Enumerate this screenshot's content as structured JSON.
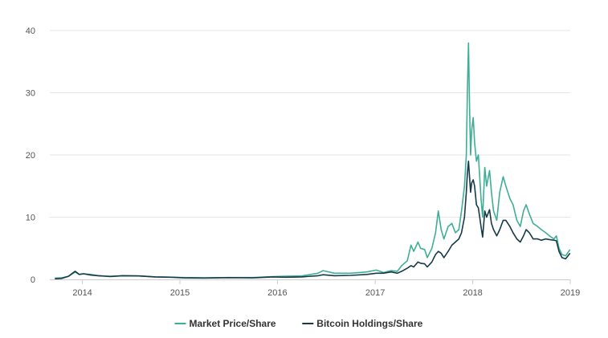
{
  "chart_data": {
    "type": "line",
    "title": "",
    "xlabel": "",
    "ylabel": "",
    "x_range": [
      "2013-09-01",
      "2019-01-01"
    ],
    "ylim": [
      0,
      40
    ],
    "x_ticks": [
      {
        "label": "2014",
        "date": "2014-01-01"
      },
      {
        "label": "2015",
        "date": "2015-01-01"
      },
      {
        "label": "2016",
        "date": "2016-01-01"
      },
      {
        "label": "2017",
        "date": "2017-01-01"
      },
      {
        "label": "2018",
        "date": "2018-01-01"
      },
      {
        "label": "2019",
        "date": "2019-01-01"
      }
    ],
    "y_ticks": [
      0,
      10,
      20,
      30,
      40
    ],
    "grid": "horizontal",
    "legend_position": "bottom-center",
    "series": [
      {
        "name": "Market Price/Share",
        "color": "#3fae96",
        "points": [
          [
            "2013-09-20",
            0.2
          ],
          [
            "2013-10-15",
            0.25
          ],
          [
            "2013-11-10",
            0.5
          ],
          [
            "2013-11-25",
            0.9
          ],
          [
            "2013-12-05",
            1.2
          ],
          [
            "2013-12-20",
            0.8
          ],
          [
            "2014-01-05",
            0.9
          ],
          [
            "2014-02-01",
            0.8
          ],
          [
            "2014-03-01",
            0.6
          ],
          [
            "2014-04-15",
            0.5
          ],
          [
            "2014-06-01",
            0.6
          ],
          [
            "2014-08-01",
            0.55
          ],
          [
            "2014-10-01",
            0.4
          ],
          [
            "2014-12-01",
            0.35
          ],
          [
            "2015-01-15",
            0.3
          ],
          [
            "2015-04-01",
            0.25
          ],
          [
            "2015-07-01",
            0.3
          ],
          [
            "2015-10-01",
            0.3
          ],
          [
            "2015-12-15",
            0.45
          ],
          [
            "2016-02-01",
            0.5
          ],
          [
            "2016-04-01",
            0.55
          ],
          [
            "2016-06-01",
            1.0
          ],
          [
            "2016-06-20",
            1.4
          ],
          [
            "2016-08-01",
            1.0
          ],
          [
            "2016-10-01",
            1.0
          ],
          [
            "2016-12-01",
            1.2
          ],
          [
            "2017-01-05",
            1.5
          ],
          [
            "2017-02-01",
            1.1
          ],
          [
            "2017-03-01",
            1.4
          ],
          [
            "2017-03-25",
            1.3
          ],
          [
            "2017-04-10",
            2.2
          ],
          [
            "2017-05-01",
            3.0
          ],
          [
            "2017-05-15",
            5.5
          ],
          [
            "2017-05-25",
            4.5
          ],
          [
            "2017-06-10",
            6.0
          ],
          [
            "2017-06-20",
            5.0
          ],
          [
            "2017-07-05",
            4.8
          ],
          [
            "2017-07-15",
            3.5
          ],
          [
            "2017-08-01",
            5.0
          ],
          [
            "2017-08-15",
            7.5
          ],
          [
            "2017-08-25",
            11.0
          ],
          [
            "2017-09-05",
            8.0
          ],
          [
            "2017-09-15",
            6.5
          ],
          [
            "2017-10-01",
            8.5
          ],
          [
            "2017-10-15",
            9.0
          ],
          [
            "2017-10-28",
            7.5
          ],
          [
            "2017-11-10",
            8.0
          ],
          [
            "2017-11-20",
            11.0
          ],
          [
            "2017-12-01",
            15.0
          ],
          [
            "2017-12-08",
            20.0
          ],
          [
            "2017-12-12",
            30.0
          ],
          [
            "2017-12-16",
            38.0
          ],
          [
            "2017-12-20",
            28.0
          ],
          [
            "2017-12-24",
            20.0
          ],
          [
            "2017-12-28",
            24.0
          ],
          [
            "2018-01-03",
            26.0
          ],
          [
            "2018-01-08",
            22.0
          ],
          [
            "2018-01-15",
            19.0
          ],
          [
            "2018-01-22",
            20.0
          ],
          [
            "2018-02-01",
            13.0
          ],
          [
            "2018-02-07",
            10.0
          ],
          [
            "2018-02-15",
            18.0
          ],
          [
            "2018-02-22",
            15.0
          ],
          [
            "2018-03-05",
            17.5
          ],
          [
            "2018-03-12",
            14.0
          ],
          [
            "2018-03-20",
            11.0
          ],
          [
            "2018-04-01",
            9.5
          ],
          [
            "2018-04-12",
            14.0
          ],
          [
            "2018-04-25",
            16.5
          ],
          [
            "2018-05-05",
            15.0
          ],
          [
            "2018-05-20",
            13.0
          ],
          [
            "2018-06-01",
            12.0
          ],
          [
            "2018-06-15",
            9.5
          ],
          [
            "2018-06-28",
            8.5
          ],
          [
            "2018-07-10",
            11.0
          ],
          [
            "2018-07-20",
            12.0
          ],
          [
            "2018-08-01",
            10.5
          ],
          [
            "2018-08-15",
            9.0
          ],
          [
            "2018-09-01",
            8.5
          ],
          [
            "2018-09-15",
            8.0
          ],
          [
            "2018-10-01",
            7.5
          ],
          [
            "2018-10-15",
            7.0
          ],
          [
            "2018-11-01",
            6.5
          ],
          [
            "2018-11-10",
            7.0
          ],
          [
            "2018-11-20",
            5.0
          ],
          [
            "2018-12-01",
            4.0
          ],
          [
            "2018-12-15",
            3.8
          ],
          [
            "2018-12-31",
            4.8
          ]
        ]
      },
      {
        "name": "Bitcoin Holdings/Share",
        "color": "#163a4a",
        "points": [
          [
            "2013-09-20",
            0.1
          ],
          [
            "2013-10-15",
            0.15
          ],
          [
            "2013-11-10",
            0.5
          ],
          [
            "2013-11-25",
            1.0
          ],
          [
            "2013-12-05",
            1.3
          ],
          [
            "2013-12-20",
            0.8
          ],
          [
            "2014-01-05",
            0.9
          ],
          [
            "2014-02-01",
            0.7
          ],
          [
            "2014-03-01",
            0.6
          ],
          [
            "2014-04-15",
            0.45
          ],
          [
            "2014-06-01",
            0.6
          ],
          [
            "2014-08-01",
            0.55
          ],
          [
            "2014-10-01",
            0.4
          ],
          [
            "2014-12-01",
            0.35
          ],
          [
            "2015-01-15",
            0.25
          ],
          [
            "2015-04-01",
            0.22
          ],
          [
            "2015-07-01",
            0.28
          ],
          [
            "2015-10-01",
            0.25
          ],
          [
            "2015-12-15",
            0.4
          ],
          [
            "2016-02-01",
            0.35
          ],
          [
            "2016-04-01",
            0.4
          ],
          [
            "2016-06-01",
            0.6
          ],
          [
            "2016-06-20",
            0.75
          ],
          [
            "2016-08-01",
            0.6
          ],
          [
            "2016-10-01",
            0.65
          ],
          [
            "2016-12-01",
            0.8
          ],
          [
            "2017-01-05",
            1.0
          ],
          [
            "2017-02-01",
            1.0
          ],
          [
            "2017-03-01",
            1.2
          ],
          [
            "2017-03-25",
            1.0
          ],
          [
            "2017-04-10",
            1.3
          ],
          [
            "2017-05-01",
            1.8
          ],
          [
            "2017-05-15",
            2.2
          ],
          [
            "2017-05-25",
            2.0
          ],
          [
            "2017-06-10",
            2.8
          ],
          [
            "2017-06-20",
            2.6
          ],
          [
            "2017-07-05",
            2.5
          ],
          [
            "2017-07-15",
            2.0
          ],
          [
            "2017-08-01",
            2.8
          ],
          [
            "2017-08-15",
            4.0
          ],
          [
            "2017-08-25",
            4.5
          ],
          [
            "2017-09-05",
            4.2
          ],
          [
            "2017-09-15",
            3.5
          ],
          [
            "2017-10-01",
            4.5
          ],
          [
            "2017-10-15",
            5.5
          ],
          [
            "2017-10-28",
            6.0
          ],
          [
            "2017-11-10",
            6.5
          ],
          [
            "2017-11-20",
            7.5
          ],
          [
            "2017-12-01",
            10.0
          ],
          [
            "2017-12-08",
            14.0
          ],
          [
            "2017-12-12",
            17.0
          ],
          [
            "2017-12-16",
            19.0
          ],
          [
            "2017-12-20",
            16.5
          ],
          [
            "2017-12-24",
            14.0
          ],
          [
            "2017-12-28",
            15.5
          ],
          [
            "2018-01-03",
            16.0
          ],
          [
            "2018-01-08",
            15.0
          ],
          [
            "2018-01-15",
            12.0
          ],
          [
            "2018-01-22",
            11.5
          ],
          [
            "2018-02-01",
            8.5
          ],
          [
            "2018-02-07",
            6.8
          ],
          [
            "2018-02-15",
            11.0
          ],
          [
            "2018-02-22",
            10.0
          ],
          [
            "2018-03-05",
            11.2
          ],
          [
            "2018-03-12",
            9.0
          ],
          [
            "2018-03-20",
            8.0
          ],
          [
            "2018-04-01",
            7.0
          ],
          [
            "2018-04-12",
            8.0
          ],
          [
            "2018-04-25",
            9.5
          ],
          [
            "2018-05-05",
            9.5
          ],
          [
            "2018-05-20",
            8.5
          ],
          [
            "2018-06-01",
            7.5
          ],
          [
            "2018-06-15",
            6.5
          ],
          [
            "2018-06-28",
            6.0
          ],
          [
            "2018-07-10",
            7.0
          ],
          [
            "2018-07-20",
            8.0
          ],
          [
            "2018-08-01",
            7.5
          ],
          [
            "2018-08-15",
            6.5
          ],
          [
            "2018-09-01",
            6.5
          ],
          [
            "2018-09-15",
            6.3
          ],
          [
            "2018-10-01",
            6.5
          ],
          [
            "2018-10-15",
            6.4
          ],
          [
            "2018-11-01",
            6.3
          ],
          [
            "2018-11-10",
            6.2
          ],
          [
            "2018-11-20",
            4.5
          ],
          [
            "2018-12-01",
            3.5
          ],
          [
            "2018-12-15",
            3.3
          ],
          [
            "2018-12-31",
            4.2
          ]
        ]
      }
    ]
  }
}
